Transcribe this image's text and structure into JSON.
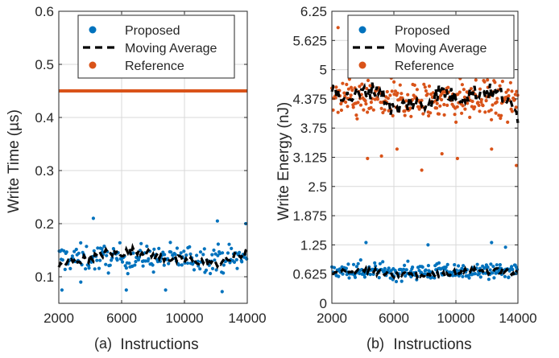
{
  "figure": {
    "caption_a": "(a)",
    "caption_b": "(b)"
  },
  "colors": {
    "proposed": "#0072BD",
    "reference": "#D95319",
    "moving_average": "#000000",
    "grid": "#d9d9d9",
    "axis": "#262626"
  },
  "chart_data": [
    {
      "type": "scatter",
      "panel": "(a)",
      "xlabel": "Instructions",
      "ylabel": "Write Time (µs)",
      "xlim": [
        2000,
        14000
      ],
      "ylim": [
        0.05,
        0.6
      ],
      "xticks": [
        "2000",
        "6000",
        "10000",
        "14000"
      ],
      "xtick_values": [
        2000,
        6000,
        10000,
        14000
      ],
      "yticks": [
        "0.1",
        "0.2",
        "0.3",
        "0.4",
        "0.5",
        "0.6"
      ],
      "ytick_values": [
        0.1,
        0.2,
        0.3,
        0.4,
        0.5,
        0.6
      ],
      "grid": true,
      "legend": {
        "position": "top",
        "entries": [
          "Proposed",
          "Moving Average",
          "Reference"
        ]
      },
      "series": [
        {
          "name": "Proposed",
          "kind": "scatter",
          "x_range": [
            2000,
            14000
          ],
          "count": 200,
          "center": 0.135,
          "spread": 0.025,
          "outliers": [
            [
              4200,
              0.21
            ],
            [
              12100,
              0.205
            ],
            [
              13900,
              0.2
            ],
            [
              2200,
              0.075
            ],
            [
              6300,
              0.075
            ],
            [
              12400,
              0.072
            ],
            [
              8800,
              0.075
            ],
            [
              3400,
              0.09
            ]
          ]
        },
        {
          "name": "Moving Average",
          "kind": "dashed-line",
          "x": [
            2000,
            3000,
            4000,
            5000,
            6000,
            7000,
            8000,
            9000,
            10000,
            11000,
            12000,
            13000,
            14000
          ],
          "y": [
            0.12,
            0.13,
            0.135,
            0.145,
            0.145,
            0.15,
            0.14,
            0.135,
            0.13,
            0.13,
            0.125,
            0.135,
            0.145
          ]
        },
        {
          "name": "Reference",
          "kind": "constant",
          "y": 0.45
        }
      ]
    },
    {
      "type": "scatter",
      "panel": "(b)",
      "xlabel": "Instructions",
      "ylabel": "Write Energy (nJ)",
      "xlim": [
        2000,
        14000
      ],
      "ylim": [
        0,
        6.25
      ],
      "xticks": [
        "2000",
        "6000",
        "10000",
        "14000"
      ],
      "xtick_values": [
        2000,
        6000,
        10000,
        14000
      ],
      "yticks": [
        "0",
        "0.625",
        "1.25",
        "1.875",
        "2.5",
        "3.125",
        "3.75",
        "4.375",
        "5",
        "5.625",
        "6.25"
      ],
      "ytick_values": [
        0,
        0.625,
        1.25,
        1.875,
        2.5,
        3.125,
        3.75,
        4.375,
        5,
        5.625,
        6.25
      ],
      "grid": true,
      "legend": {
        "position": "top",
        "entries": [
          "Proposed",
          "Moving Average",
          "Reference"
        ]
      },
      "series": [
        {
          "name": "Proposed",
          "kind": "scatter",
          "x_range": [
            2000,
            14000
          ],
          "count": 240,
          "center": 0.68,
          "spread": 0.17,
          "outliers": [
            [
              4200,
              1.3
            ],
            [
              8200,
              1.25
            ],
            [
              12300,
              1.3
            ],
            [
              13200,
              1.2
            ]
          ]
        },
        {
          "name": "Moving Average",
          "kind": "dashed-line",
          "segment": "proposed",
          "x": [
            2000,
            3000,
            4000,
            5000,
            6000,
            7000,
            8000,
            9000,
            10000,
            11000,
            12000,
            13000,
            14000
          ],
          "y": [
            0.62,
            0.7,
            0.72,
            0.66,
            0.6,
            0.64,
            0.58,
            0.62,
            0.66,
            0.7,
            0.68,
            0.7,
            0.62
          ]
        },
        {
          "name": "Reference",
          "kind": "scatter",
          "x_range": [
            2000,
            14000
          ],
          "count": 260,
          "center": 4.35,
          "spread": 0.42,
          "outliers": [
            [
              2400,
              5.9
            ],
            [
              4300,
              3.1
            ],
            [
              5200,
              3.15
            ],
            [
              6200,
              3.3
            ],
            [
              7800,
              2.85
            ],
            [
              10100,
              3.1
            ],
            [
              12300,
              3.3
            ],
            [
              13900,
              2.95
            ],
            [
              9100,
              3.2
            ]
          ]
        },
        {
          "name": "Moving Average",
          "kind": "dashed-line",
          "segment": "reference",
          "x": [
            2000,
            3000,
            4000,
            5000,
            6000,
            7000,
            8000,
            9000,
            10000,
            11000,
            12000,
            13000,
            14000
          ],
          "y": [
            4.6,
            4.4,
            4.5,
            4.6,
            4.1,
            4.3,
            4.25,
            4.55,
            4.4,
            4.5,
            4.55,
            4.45,
            4.0
          ]
        }
      ]
    }
  ]
}
